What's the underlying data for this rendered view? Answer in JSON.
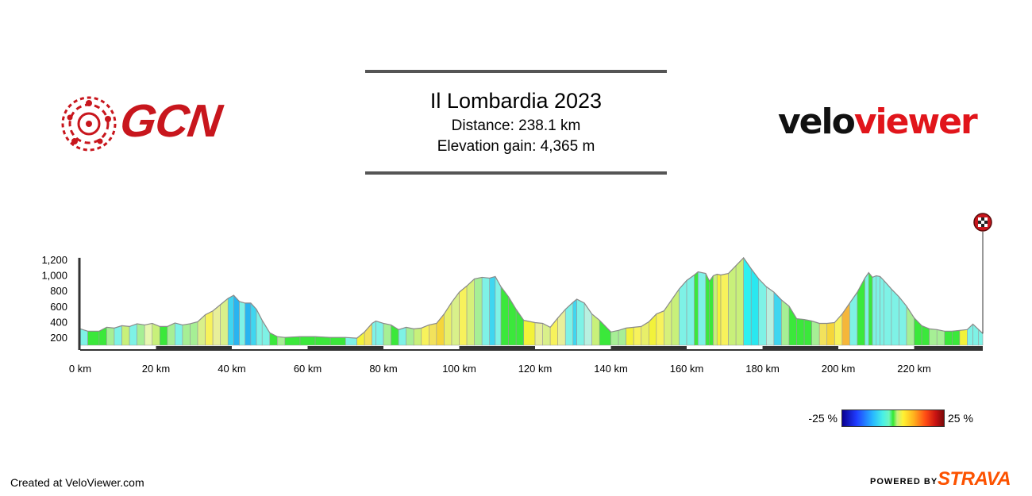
{
  "header": {
    "title": "Il Lombardia 2023",
    "distance": "Distance: 238.1 km",
    "elevation_gain": "Elevation gain: 4,365 m"
  },
  "logos": {
    "left": "GCN",
    "right_part1": "velo",
    "right_part2": "viewer",
    "brand_red": "#c8161d"
  },
  "legend": {
    "min_label": "-25 %",
    "max_label": "25 %"
  },
  "footer": {
    "created": "Created at VeloViewer.com",
    "powered": "POWERED BY",
    "strava": "STRAVA",
    "strava_color": "#fc5200"
  },
  "icons": {
    "finish": "checkered-flag-icon"
  },
  "chart_data": {
    "type": "area",
    "title": "Il Lombardia 2023",
    "xlabel": "",
    "ylabel": "",
    "xlim": [
      0,
      238.1
    ],
    "ylim": [
      100,
      1300
    ],
    "x_ticks": [
      {
        "value": 0,
        "label": "0 km"
      },
      {
        "value": 20,
        "label": "20 km"
      },
      {
        "value": 40,
        "label": "40 km"
      },
      {
        "value": 60,
        "label": "60 km"
      },
      {
        "value": 80,
        "label": "80 km"
      },
      {
        "value": 100,
        "label": "100 km"
      },
      {
        "value": 120,
        "label": "120 km"
      },
      {
        "value": 140,
        "label": "140 km"
      },
      {
        "value": 160,
        "label": "160 km"
      },
      {
        "value": 180,
        "label": "180 km"
      },
      {
        "value": 200,
        "label": "200 km"
      },
      {
        "value": 220,
        "label": "220 km"
      }
    ],
    "y_ticks": [
      {
        "value": 200,
        "label": "200"
      },
      {
        "value": 400,
        "label": "400"
      },
      {
        "value": 600,
        "label": "600"
      },
      {
        "value": 800,
        "label": "800"
      },
      {
        "value": 1000,
        "label": "1,000"
      },
      {
        "value": 1200,
        "label": "1,200"
      }
    ],
    "grid": false,
    "legend": "color scale bottom-right, gradient from -25 % to 25 %",
    "profile": [
      [
        0,
        310
      ],
      [
        2,
        280
      ],
      [
        5,
        280
      ],
      [
        7,
        330
      ],
      [
        9,
        320
      ],
      [
        11,
        350
      ],
      [
        13,
        340
      ],
      [
        15,
        375
      ],
      [
        17,
        360
      ],
      [
        19,
        380
      ],
      [
        21,
        340
      ],
      [
        23,
        340
      ],
      [
        25,
        385
      ],
      [
        27,
        360
      ],
      [
        29,
        375
      ],
      [
        31,
        400
      ],
      [
        33,
        490
      ],
      [
        35,
        540
      ],
      [
        37,
        620
      ],
      [
        39,
        700
      ],
      [
        40.5,
        740
      ],
      [
        42,
        660
      ],
      [
        43.5,
        640
      ],
      [
        45,
        640
      ],
      [
        46.5,
        560
      ],
      [
        48,
        420
      ],
      [
        50,
        260
      ],
      [
        52,
        210
      ],
      [
        54,
        200
      ],
      [
        58,
        210
      ],
      [
        62,
        210
      ],
      [
        66,
        200
      ],
      [
        70,
        200
      ],
      [
        73,
        190
      ],
      [
        75,
        270
      ],
      [
        77,
        380
      ],
      [
        78,
        410
      ],
      [
        80,
        380
      ],
      [
        82,
        360
      ],
      [
        84,
        300
      ],
      [
        86,
        330
      ],
      [
        88,
        310
      ],
      [
        90,
        320
      ],
      [
        92,
        360
      ],
      [
        94,
        380
      ],
      [
        96,
        500
      ],
      [
        98,
        650
      ],
      [
        100,
        780
      ],
      [
        102,
        860
      ],
      [
        104,
        950
      ],
      [
        106,
        970
      ],
      [
        108,
        960
      ],
      [
        109.5,
        980
      ],
      [
        111,
        850
      ],
      [
        113,
        720
      ],
      [
        115,
        560
      ],
      [
        117,
        420
      ],
      [
        120,
        390
      ],
      [
        122,
        380
      ],
      [
        124,
        330
      ],
      [
        126,
        450
      ],
      [
        128,
        560
      ],
      [
        130,
        650
      ],
      [
        131,
        690
      ],
      [
        133,
        640
      ],
      [
        135,
        500
      ],
      [
        137,
        420
      ],
      [
        140,
        270
      ],
      [
        142,
        290
      ],
      [
        144,
        320
      ],
      [
        146,
        330
      ],
      [
        148,
        340
      ],
      [
        150,
        400
      ],
      [
        152,
        500
      ],
      [
        154,
        540
      ],
      [
        156,
        680
      ],
      [
        158,
        820
      ],
      [
        160,
        930
      ],
      [
        162,
        1000
      ],
      [
        163,
        1040
      ],
      [
        165,
        1020
      ],
      [
        166,
        920
      ],
      [
        167,
        990
      ],
      [
        168,
        1010
      ],
      [
        169,
        1000
      ],
      [
        171,
        1020
      ],
      [
        173,
        1120
      ],
      [
        175,
        1220
      ],
      [
        177,
        1080
      ],
      [
        179,
        950
      ],
      [
        181,
        850
      ],
      [
        183,
        780
      ],
      [
        185,
        680
      ],
      [
        187,
        600
      ],
      [
        189,
        440
      ],
      [
        191,
        430
      ],
      [
        193,
        410
      ],
      [
        195,
        380
      ],
      [
        197,
        380
      ],
      [
        199,
        390
      ],
      [
        201,
        500
      ],
      [
        203,
        640
      ],
      [
        205,
        780
      ],
      [
        207,
        960
      ],
      [
        208,
        1030
      ],
      [
        209,
        970
      ],
      [
        210,
        990
      ],
      [
        211,
        980
      ],
      [
        212,
        930
      ],
      [
        214,
        820
      ],
      [
        216,
        720
      ],
      [
        218,
        600
      ],
      [
        220,
        450
      ],
      [
        222,
        350
      ],
      [
        224,
        310
      ],
      [
        226,
        300
      ],
      [
        228,
        280
      ],
      [
        230,
        280
      ],
      [
        232,
        290
      ],
      [
        234,
        300
      ],
      [
        235.5,
        370
      ],
      [
        237,
        300
      ],
      [
        238.1,
        250
      ]
    ],
    "gradient_colors": [
      "#7ef2e6",
      "#3be83b",
      "#3be83b",
      "#a6ef95",
      "#7ef2e6",
      "#c8f07a",
      "#7ef2e6",
      "#a6ef95",
      "#e6f7b0",
      "#c8f07a",
      "#3be83b",
      "#a6ef95",
      "#7ef2e6",
      "#a6ef95",
      "#a6ef95",
      "#d9f08a",
      "#f7f25c",
      "#e8ef9a",
      "#d9f08a",
      "#3fd6f0",
      "#29b4f0",
      "#7ef2e6",
      "#29b4f0",
      "#3fd6f0",
      "#7ef2e6",
      "#7ef2e6",
      "#3be83b",
      "#a6ef95",
      "#3be83b",
      "#3be83b",
      "#3be83b",
      "#3be83b",
      "#7ef2e6",
      "#f2f23a",
      "#f2e25c",
      "#7ef2e6",
      "#7ef2e6",
      "#a6ef95",
      "#3be83b",
      "#7ef2e6",
      "#a6ef95",
      "#c8f07a",
      "#f7f25c",
      "#f2e25c",
      "#f5d63a",
      "#e8ef6a",
      "#d9f08a",
      "#f7f25c",
      "#d6f07a",
      "#a6ef95",
      "#7ef2e6",
      "#3fd6f0",
      "#7ef2e6",
      "#3be83b",
      "#3be83b",
      "#3be83b",
      "#f2f23a",
      "#e8ef9a",
      "#d9f08a",
      "#f7f25c",
      "#e8ef9a",
      "#7ef2e6",
      "#3fd6f0",
      "#7ef2e6",
      "#b8f0e0",
      "#c8f07a",
      "#3be83b",
      "#a6ef95",
      "#a6ef95",
      "#f2f23a",
      "#f7f25c",
      "#e8ef6a",
      "#f2f23a",
      "#f7f25c",
      "#d6f07a",
      "#c8f07a",
      "#7ef2e6",
      "#7ef2e6",
      "#3be83b",
      "#7ef2e6",
      "#3be83b",
      "#3be83b",
      "#c8f07a",
      "#f2f23a",
      "#f7f25c",
      "#c8f07a",
      "#c8f07a",
      "#2ef0f0",
      "#29e8f0",
      "#7ef2e6",
      "#b8f0e0",
      "#3fd6f0",
      "#a6ef95",
      "#3be83b",
      "#3be83b",
      "#3be83b",
      "#a6ef95",
      "#f2e25c",
      "#f5d63a",
      "#f7f25c",
      "#f5b63a",
      "#7ef2e6",
      "#3be83b",
      "#7ef2e6",
      "#3be83b",
      "#7ef2e6",
      "#7ef2e6",
      "#7ef2e6",
      "#7ef2e6",
      "#7ef2e6",
      "#7ef2e6",
      "#a6ef95",
      "#3be83b",
      "#3be83b",
      "#a6ef95",
      "#a6ef95",
      "#3be83b",
      "#3be83b",
      "#f2f23a",
      "#7ef2e6",
      "#7ef2e6",
      "#7ef2e6"
    ]
  }
}
